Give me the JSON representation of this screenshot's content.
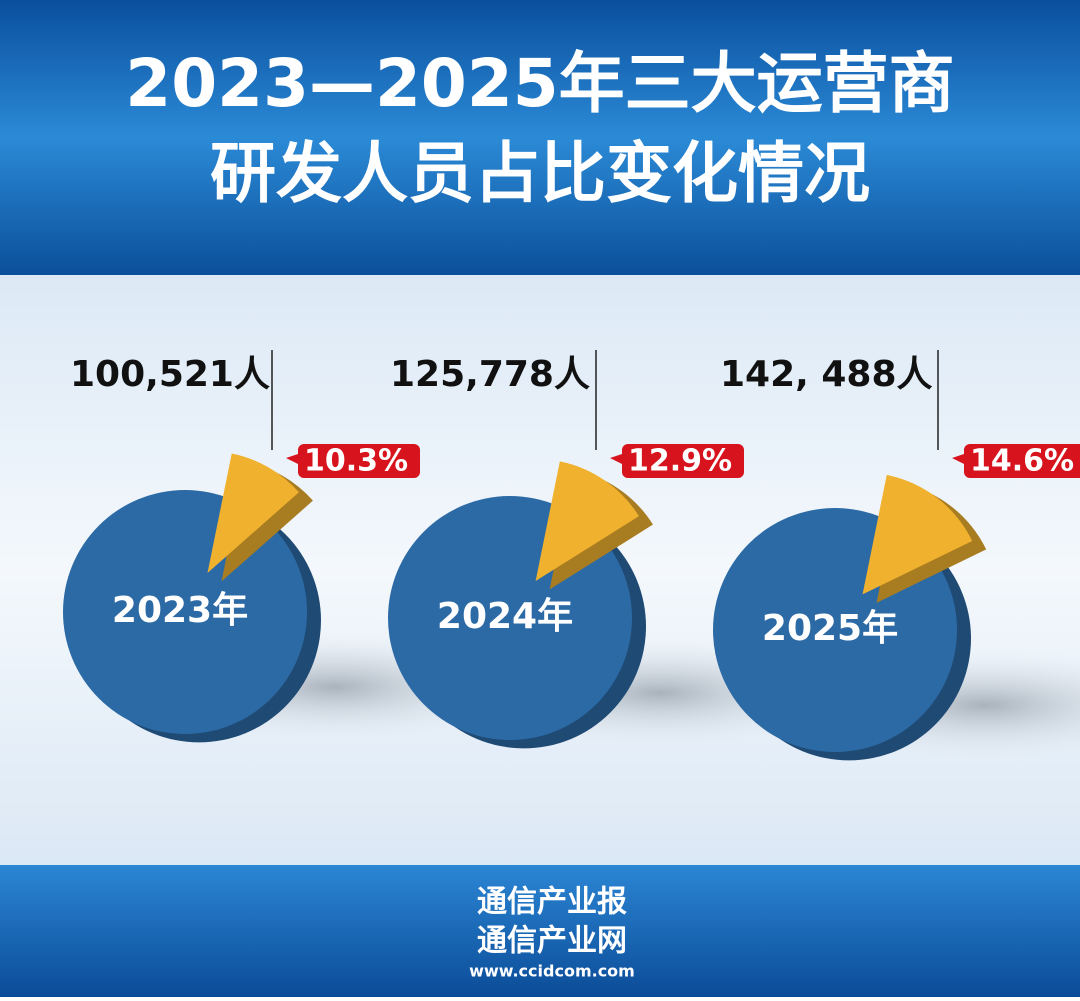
{
  "header": {
    "title_lines": [
      "2023—2025年三大运营商",
      "研发人员占比变化情况"
    ]
  },
  "chart_data": [
    {
      "type": "pie",
      "center_label": "2023年",
      "count_label": "100,521人",
      "values": [
        10.3
      ],
      "value_labels": [
        "10.3%"
      ],
      "color": "#f0b12e",
      "rest_color": "#2c6aa6"
    },
    {
      "type": "pie",
      "center_label": "2024年",
      "count_label": "125,778人",
      "values": [
        12.9
      ],
      "value_labels": [
        "12.9%"
      ],
      "color": "#f0b12e",
      "rest_color": "#2c6aa6"
    },
    {
      "type": "pie",
      "center_label": "2025年",
      "count_label": "142, 488人",
      "values": [
        14.6
      ],
      "value_labels": [
        "14.6%"
      ],
      "color": "#f0b12e",
      "rest_color": "#2c6aa6"
    }
  ],
  "footer": {
    "lines": [
      "通信产业报",
      "通信产业网"
    ],
    "url": "www.ccidcom.com"
  }
}
